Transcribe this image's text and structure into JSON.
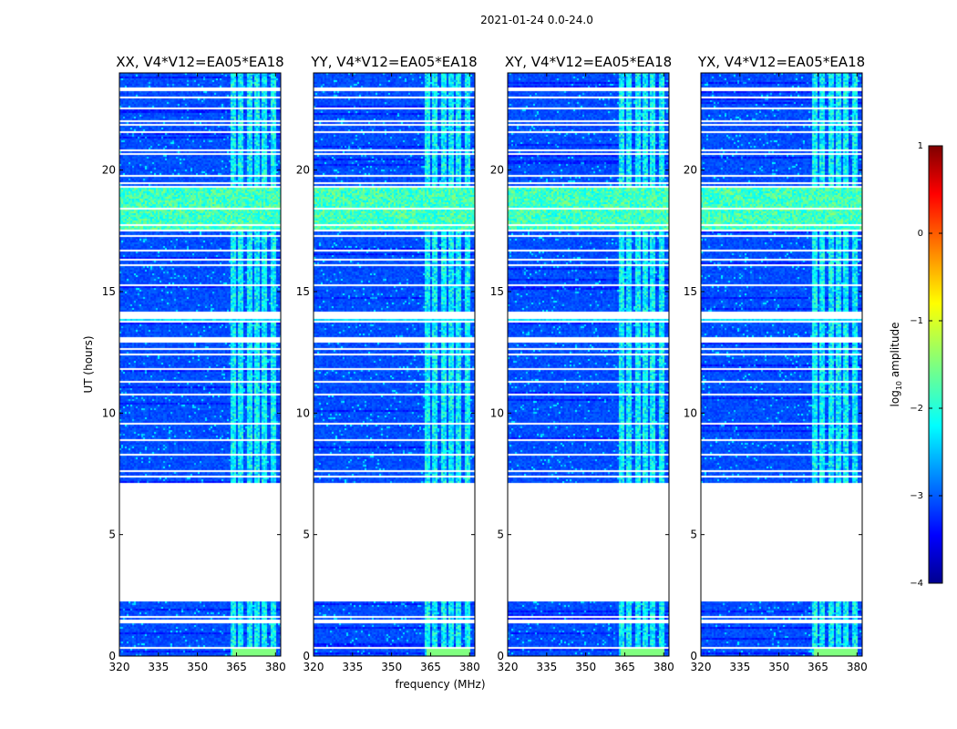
{
  "figure": {
    "suptitle": "2021-01-24 0.0-24.0"
  },
  "chart_data": {
    "type": "heatmap",
    "title": "2021-01-24 0.0-24.0",
    "xlabel": "frequency (MHz)",
    "ylabel": "UT (hours)",
    "xlim": [
      320,
      382
    ],
    "ylim": [
      0,
      24
    ],
    "x_ticks": [
      320,
      335,
      350,
      365,
      380
    ],
    "y_ticks": [
      0,
      5,
      10,
      15,
      20
    ],
    "colormap": "jet",
    "colorbar": {
      "label_main": "log",
      "label_sub": "10",
      "label_rest": " amplitude",
      "range": [
        -4,
        1
      ],
      "ticks": [
        "1",
        "0",
        "−1",
        "−2",
        "−3",
        "−4"
      ],
      "tick_values": [
        1,
        0,
        -1,
        -2,
        -3,
        -4
      ]
    },
    "panels": [
      {
        "title": "XX, V4*V12=EA05*EA18"
      },
      {
        "title": "YY, V4*V12=EA05*EA18"
      },
      {
        "title": "XY, V4*V12=EA05*EA18"
      },
      {
        "title": "YX, V4*V12=EA05*EA18"
      }
    ],
    "data_gaps_ut": [
      [
        0.33,
        0.39
      ],
      [
        1.42,
        1.5
      ],
      [
        1.6,
        1.68
      ],
      [
        2.28,
        7.18
      ],
      [
        7.38,
        7.44
      ],
      [
        7.62,
        7.68
      ],
      [
        8.3,
        8.36
      ],
      [
        8.48,
        8.54
      ],
      [
        8.9,
        8.96
      ],
      [
        9.6,
        9.66
      ],
      [
        10.75,
        10.8
      ],
      [
        11.3,
        11.36
      ],
      [
        11.8,
        11.86
      ],
      [
        12.45,
        12.5
      ],
      [
        12.62,
        12.68
      ],
      [
        12.95,
        13.15
      ],
      [
        13.75,
        13.8
      ],
      [
        13.95,
        14.2
      ],
      [
        14.8,
        14.85
      ],
      [
        15.25,
        15.3
      ],
      [
        15.55,
        15.6
      ],
      [
        16.12,
        16.18
      ],
      [
        16.3,
        16.35
      ],
      [
        16.7,
        16.75
      ],
      [
        17.3,
        17.35
      ],
      [
        17.55,
        17.6
      ],
      [
        17.72,
        17.78
      ],
      [
        18.45,
        18.5
      ],
      [
        19.35,
        19.4
      ],
      [
        19.5,
        19.56
      ],
      [
        19.75,
        19.82
      ],
      [
        20.65,
        20.7
      ],
      [
        20.85,
        20.9
      ],
      [
        21.55,
        21.6
      ],
      [
        21.85,
        21.9
      ],
      [
        22.05,
        22.1
      ],
      [
        22.55,
        22.6
      ],
      [
        23.0,
        23.05
      ],
      [
        23.3,
        23.4
      ]
    ],
    "high_band_ut": [
      17.6,
      19.35
    ],
    "rfi_freq_mhz": [
      363.5,
      366.5,
      369.5,
      372.5,
      375.5,
      378.5
    ]
  }
}
